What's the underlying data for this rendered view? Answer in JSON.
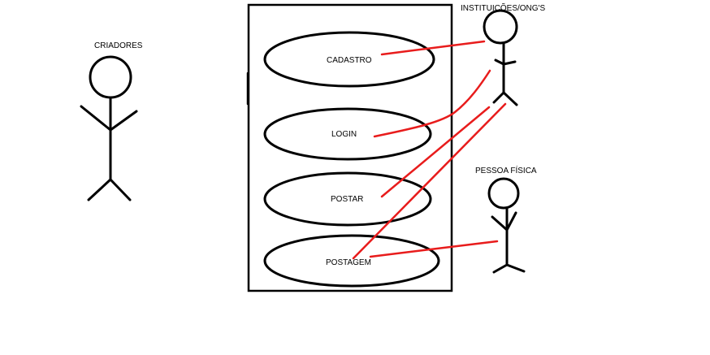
{
  "actors": {
    "criadores": {
      "label": "CRIADORES"
    },
    "instituicoes": {
      "label": "INSTITUIÇÕES/ONG'S"
    },
    "pessoa_fisica": {
      "label": "PESSOA FÍSICA"
    }
  },
  "use_cases": {
    "cadastro": {
      "label": "CADASTRO"
    },
    "login": {
      "label": "LOGIN"
    },
    "postar": {
      "label": "POSTAR"
    },
    "postagem": {
      "label": "POSTAGEM"
    }
  },
  "colors": {
    "association_line": "#e81c1c",
    "outline": "#000000",
    "background": "#ffffff"
  },
  "associations": [
    {
      "actor": "INSTITUIÇÕES/ONG'S",
      "use_case": "CADASTRO"
    },
    {
      "actor": "INSTITUIÇÕES/ONG'S",
      "use_case": "LOGIN"
    },
    {
      "actor": "INSTITUIÇÕES/ONG'S",
      "use_case": "POSTAR"
    },
    {
      "actor": "INSTITUIÇÕES/ONG'S",
      "use_case": "POSTAGEM"
    },
    {
      "actor": "PESSOA FÍSICA",
      "use_case": "POSTAGEM"
    }
  ]
}
